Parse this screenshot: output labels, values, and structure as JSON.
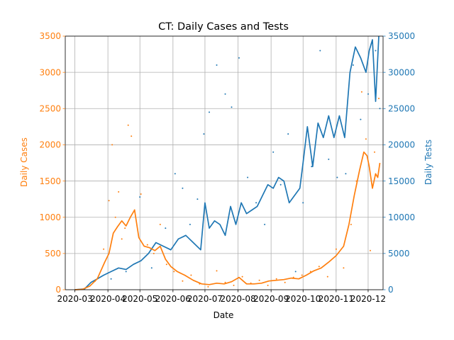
{
  "chart_data": {
    "type": "line",
    "title": "CT: Daily Cases and Tests",
    "xlabel": "Date",
    "ylabel_left": "Daily Cases",
    "ylabel_right": "Daily Tests",
    "x_tick_labels": [
      "2020-03",
      "2020-04",
      "2020-05",
      "2020-06",
      "2020-07",
      "2020-08",
      "2020-09",
      "2020-10",
      "2020-11",
      "2020-12"
    ],
    "y_left_ticks": [
      0,
      500,
      1000,
      1500,
      2000,
      2500,
      3000,
      3500
    ],
    "y_right_ticks": [
      0,
      5000,
      10000,
      15000,
      20000,
      25000,
      30000,
      35000
    ],
    "ylim_left": [
      0,
      3500
    ],
    "ylim_right": [
      0,
      35000
    ],
    "xlim": [
      "2020-02-21",
      "2020-12-15"
    ],
    "grid": true,
    "colors": {
      "cases": "#ff7f0e",
      "tests": "#1f77b4",
      "axis_left": "#ff7f0e",
      "axis_right": "#1f77b4"
    },
    "series": [
      {
        "axis": "left",
        "style": "line",
        "x": [
          "2020-03-01",
          "2020-03-08",
          "2020-03-15",
          "2020-03-22",
          "2020-03-29",
          "2020-04-02",
          "2020-04-06",
          "2020-04-10",
          "2020-04-14",
          "2020-04-18",
          "2020-04-22",
          "2020-04-26",
          "2020-04-30",
          "2020-05-05",
          "2020-05-10",
          "2020-05-15",
          "2020-05-20",
          "2020-05-25",
          "2020-05-30",
          "2020-06-05",
          "2020-06-12",
          "2020-06-20",
          "2020-06-28",
          "2020-07-05",
          "2020-07-12",
          "2020-07-19",
          "2020-07-26",
          "2020-08-02",
          "2020-08-09",
          "2020-08-16",
          "2020-08-23",
          "2020-08-30",
          "2020-09-06",
          "2020-09-13",
          "2020-09-20",
          "2020-09-27",
          "2020-10-04",
          "2020-10-11",
          "2020-10-18",
          "2020-10-25",
          "2020-11-01",
          "2020-11-08",
          "2020-11-13",
          "2020-11-18",
          "2020-11-23",
          "2020-11-27",
          "2020-11-30",
          "2020-12-02",
          "2020-12-05",
          "2020-12-08",
          "2020-12-10",
          "2020-12-12"
        ],
        "y": [
          0,
          5,
          50,
          150,
          380,
          500,
          780,
          870,
          950,
          880,
          1000,
          1100,
          720,
          600,
          580,
          540,
          600,
          420,
          320,
          250,
          200,
          130,
          80,
          70,
          90,
          80,
          110,
          170,
          80,
          80,
          90,
          120,
          130,
          140,
          160,
          150,
          200,
          260,
          300,
          380,
          470,
          600,
          900,
          1300,
          1650,
          1900,
          1850,
          1700,
          1400,
          1600,
          1550,
          1750
        ]
      },
      {
        "axis": "left",
        "style": "scatter",
        "x": [
          "2020-03-20",
          "2020-03-28",
          "2020-04-02",
          "2020-04-05",
          "2020-04-08",
          "2020-04-11",
          "2020-04-14",
          "2020-04-17",
          "2020-04-20",
          "2020-04-23",
          "2020-04-26",
          "2020-05-02",
          "2020-05-08",
          "2020-05-14",
          "2020-05-20",
          "2020-05-26",
          "2020-06-02",
          "2020-06-10",
          "2020-06-18",
          "2020-06-26",
          "2020-07-04",
          "2020-07-12",
          "2020-07-20",
          "2020-07-28",
          "2020-08-05",
          "2020-08-13",
          "2020-08-21",
          "2020-08-29",
          "2020-09-06",
          "2020-09-14",
          "2020-09-22",
          "2020-09-30",
          "2020-10-08",
          "2020-10-16",
          "2020-10-24",
          "2020-11-01",
          "2020-11-08",
          "2020-11-15",
          "2020-11-20",
          "2020-11-25",
          "2020-11-29",
          "2020-12-03",
          "2020-12-07",
          "2020-12-11"
        ],
        "y": [
          120,
          560,
          1230,
          2000,
          1000,
          1350,
          700,
          850,
          2270,
          2120,
          1100,
          1320,
          620,
          500,
          900,
          350,
          250,
          120,
          200,
          80,
          40,
          260,
          100,
          60,
          180,
          90,
          130,
          60,
          150,
          100,
          170,
          200,
          250,
          320,
          180,
          560,
          300,
          900,
          1500,
          2730,
          2080,
          540,
          1900,
          2640
        ]
      },
      {
        "axis": "right",
        "style": "line",
        "x": [
          "2020-03-01",
          "2020-03-10",
          "2020-03-16",
          "2020-03-22",
          "2020-03-28",
          "2020-04-04",
          "2020-04-11",
          "2020-04-18",
          "2020-04-25",
          "2020-05-02",
          "2020-05-09",
          "2020-05-16",
          "2020-05-23",
          "2020-05-30",
          "2020-06-06",
          "2020-06-13",
          "2020-06-20",
          "2020-06-27",
          "2020-07-01",
          "2020-07-05",
          "2020-07-10",
          "2020-07-15",
          "2020-07-20",
          "2020-07-25",
          "2020-07-30",
          "2020-08-04",
          "2020-08-09",
          "2020-08-14",
          "2020-08-19",
          "2020-08-24",
          "2020-08-29",
          "2020-09-03",
          "2020-09-08",
          "2020-09-13",
          "2020-09-18",
          "2020-09-23",
          "2020-09-28",
          "2020-10-01",
          "2020-10-05",
          "2020-10-10",
          "2020-10-15",
          "2020-10-20",
          "2020-10-25",
          "2020-10-30",
          "2020-11-04",
          "2020-11-09",
          "2020-11-14",
          "2020-11-19",
          "2020-11-24",
          "2020-11-29",
          "2020-12-02",
          "2020-12-05",
          "2020-12-08",
          "2020-12-11"
        ],
        "y": [
          0,
          100,
          1000,
          1500,
          2000,
          2500,
          3000,
          2800,
          3500,
          4000,
          5000,
          6500,
          6000,
          5500,
          7000,
          7500,
          6500,
          5500,
          12000,
          8500,
          9500,
          9000,
          7500,
          11500,
          9000,
          12000,
          10500,
          11000,
          11500,
          13000,
          14500,
          14000,
          15500,
          15000,
          12000,
          13000,
          14000,
          17500,
          22500,
          17000,
          23000,
          21000,
          24000,
          21000,
          24000,
          21000,
          30000,
          33500,
          32000,
          30000,
          33000,
          34500,
          26000,
          35000
        ]
      },
      {
        "axis": "right",
        "style": "scatter",
        "x": [
          "2020-04-04",
          "2020-04-18",
          "2020-05-01",
          "2020-05-12",
          "2020-05-25",
          "2020-06-03",
          "2020-06-10",
          "2020-06-17",
          "2020-06-24",
          "2020-06-30",
          "2020-07-05",
          "2020-07-12",
          "2020-07-20",
          "2020-07-26",
          "2020-08-02",
          "2020-08-10",
          "2020-08-18",
          "2020-08-26",
          "2020-09-03",
          "2020-09-10",
          "2020-09-17",
          "2020-09-24",
          "2020-10-01",
          "2020-10-09",
          "2020-10-17",
          "2020-10-25",
          "2020-11-02",
          "2020-11-10",
          "2020-11-17",
          "2020-11-24",
          "2020-12-01",
          "2020-12-08",
          "2020-12-12"
        ],
        "y": [
          1500,
          2500,
          12800,
          3000,
          8500,
          16000,
          14000,
          9000,
          12500,
          21500,
          24500,
          31000,
          27000,
          25200,
          32000,
          15500,
          12000,
          9000,
          19000,
          14500,
          21500,
          2500,
          12000,
          17000,
          33000,
          18000,
          15500,
          16000,
          31000,
          23500,
          27000,
          33000,
          25000
        ]
      }
    ]
  }
}
